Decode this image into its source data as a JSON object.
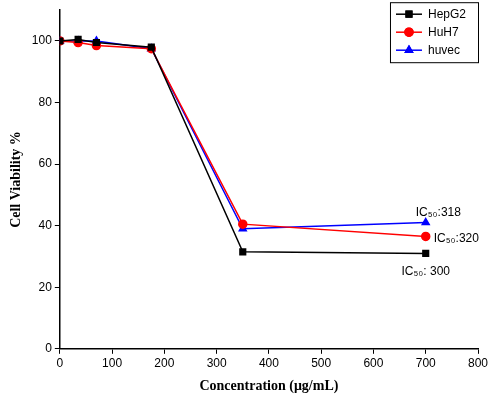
{
  "chart_data": {
    "type": "line",
    "x_label": "Concentration (μg/mL)",
    "y_label": "Cell Viability %",
    "x": [
      0,
      35,
      70,
      175,
      350,
      700
    ],
    "series": [
      {
        "name": "HepG2",
        "color": "#000000",
        "marker": "square",
        "values": [
          100,
          100.5,
          99.5,
          98,
          31.5,
          31
        ]
      },
      {
        "name": "HuH7",
        "color": "#ff0000",
        "marker": "circle",
        "values": [
          100,
          99.5,
          98.5,
          97.5,
          40.5,
          36.5
        ]
      },
      {
        "name": "huvec",
        "color": "#0000ff",
        "marker": "triangle",
        "values": [
          100,
          100,
          100,
          97.5,
          39,
          41
        ]
      }
    ],
    "annotations": [
      {
        "text": "IC₅₀:318",
        "series": "huvec"
      },
      {
        "text": "IC₅₀:320",
        "series": "HuH7"
      },
      {
        "text": "IC₅₀: 300",
        "series": "HepG2"
      }
    ],
    "xlim": [
      0,
      800
    ],
    "xticks": [
      0,
      100,
      200,
      300,
      400,
      500,
      600,
      700,
      800
    ],
    "ylim": [
      0,
      110
    ],
    "yticks": [
      0,
      20,
      40,
      60,
      80,
      100
    ],
    "grid": false,
    "legend": "upper right"
  }
}
